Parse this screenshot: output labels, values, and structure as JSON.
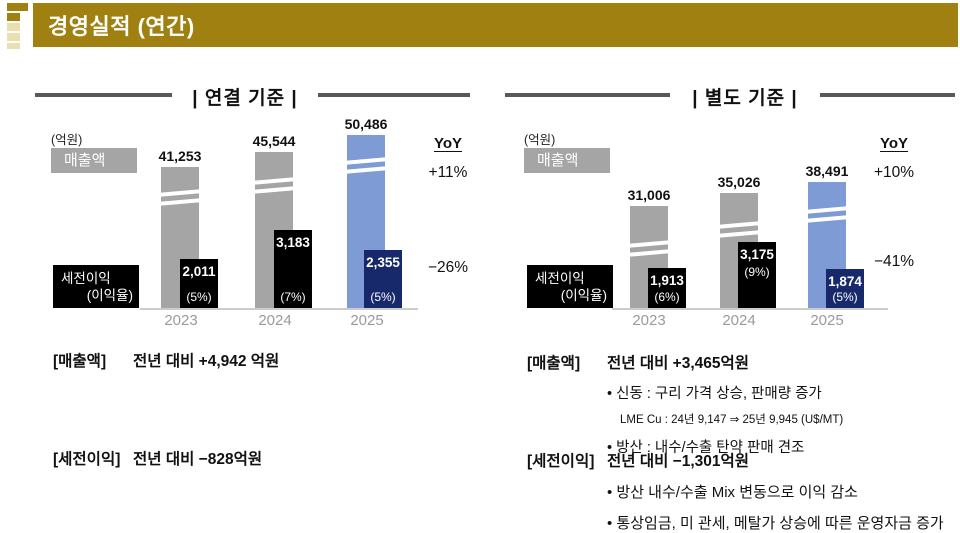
{
  "header": {
    "title": "경영실적 (연간)"
  },
  "colors": {
    "gold": "#A08010",
    "cream": "#EBDFAF",
    "revenue_bar": "#A5A5A5",
    "highlight_bar": "#7F9BD5",
    "profit_bar": "#000000",
    "highlight_profit_bar": "#17296B",
    "title_rule": "#595959",
    "axis": "#CCCCCC",
    "year_label": "#9A9A9A"
  },
  "chart_data": [
    {
      "type": "bar",
      "title": "연결 기준",
      "display_title": "|  연결 기준  |",
      "unit_label": "(억원)",
      "legend_revenue": "매출액",
      "profit_badge": {
        "line1": "세전이익",
        "line2": "(이익율)"
      },
      "categories": [
        "2023",
        "2024",
        "2025"
      ],
      "series": [
        {
          "name": "매출액",
          "values": [
            41253,
            45544,
            50486
          ],
          "labels": [
            "41,253",
            "45,544",
            "50,486"
          ]
        },
        {
          "name": "세전이익",
          "values": [
            2011,
            3183,
            2355
          ],
          "labels": [
            "2,011",
            "3,183",
            "2,355"
          ],
          "pct_labels": [
            "(5%)",
            "(7%)",
            "(5%)"
          ]
        }
      ],
      "yoy": {
        "header": "YoY",
        "revenue": "+11%",
        "profit": "−26%"
      },
      "axis_break": true,
      "highlight_year": "2025",
      "grid": false,
      "legend_position": "left"
    },
    {
      "type": "bar",
      "title": "별도 기준",
      "display_title": "|  별도 기준  |",
      "unit_label": "(억원)",
      "legend_revenue": "매출액",
      "profit_badge": {
        "line1": "세전이익",
        "line2": "(이익율)"
      },
      "categories": [
        "2023",
        "2024",
        "2025"
      ],
      "series": [
        {
          "name": "매출액",
          "values": [
            31006,
            35026,
            38491
          ],
          "labels": [
            "31,006",
            "35,026",
            "38,491"
          ]
        },
        {
          "name": "세전이익",
          "values": [
            1913,
            3175,
            1874
          ],
          "labels": [
            "1,913",
            "3,175",
            "1,874"
          ],
          "pct_labels": [
            "(6%)",
            "(9%)",
            "(5%)"
          ]
        }
      ],
      "yoy": {
        "header": "YoY",
        "revenue": "+10%",
        "profit": "−41%"
      },
      "axis_break": true,
      "highlight_year": "2025",
      "grid": false,
      "legend_position": "left"
    }
  ],
  "summaries": {
    "consolidated": {
      "revenue": {
        "tag": "[매출액]",
        "text": "전년 대비 +4,942 억원"
      },
      "profit": {
        "tag": "[세전이익]",
        "text": "전년 대비 −828억원"
      }
    },
    "separate": {
      "revenue": {
        "tag": "[매출액]",
        "text": "전년 대비 +3,465억원",
        "bullet1": "• 신동 : 구리 가격 상승, 판매량 증가",
        "subnote": "LME Cu : 24년 9,147 ⇒ 25년 9,945 (U$/MT)",
        "bullet2": "• 방산 : 내수/수출 탄약 판매 견조"
      },
      "profit": {
        "tag": "[세전이익]",
        "text": "전년 대비 −1,301억원",
        "bullet1": "•  방산 내수/수출 Mix 변동으로 이익 감소",
        "bullet2": "•  통상임금, 미 관세, 메탈가 상승에 따른 운영자금 증가"
      }
    }
  }
}
